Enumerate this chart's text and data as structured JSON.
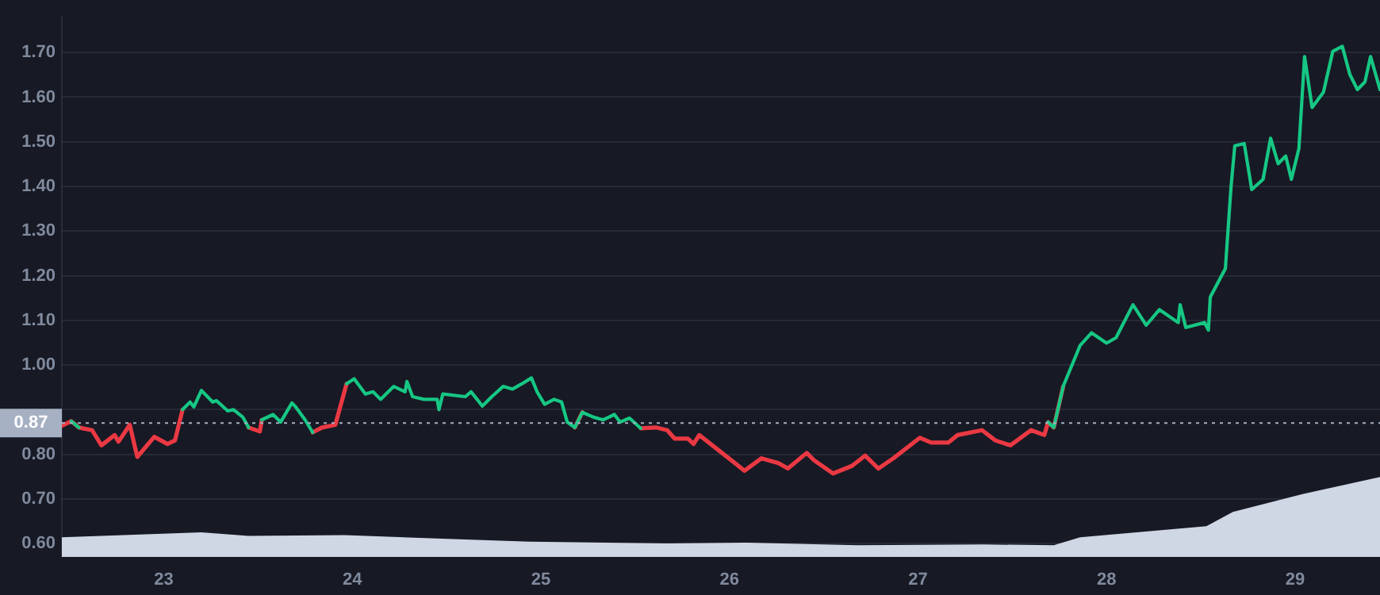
{
  "chart_data": {
    "type": "line",
    "xlim": [
      22.46,
      29.45
    ],
    "xticks": [
      23,
      24,
      25,
      26,
      27,
      28,
      29
    ],
    "ylim": [
      0.57,
      1.78
    ],
    "yticks": [
      {
        "value": 0.6,
        "label": "0.60"
      },
      {
        "value": 0.7,
        "label": "0.70"
      },
      {
        "value": 0.8,
        "label": "0.80"
      },
      {
        "value": 0.9,
        "label": null
      },
      {
        "value": 1.0,
        "label": "1.00"
      },
      {
        "value": 1.1,
        "label": "1.10"
      },
      {
        "value": 1.2,
        "label": "1.20"
      },
      {
        "value": 1.3,
        "label": "1.30"
      },
      {
        "value": 1.4,
        "label": "1.40"
      },
      {
        "value": 1.5,
        "label": "1.50"
      },
      {
        "value": 1.6,
        "label": "1.60"
      },
      {
        "value": 1.7,
        "label": "1.70"
      }
    ],
    "grid": "y",
    "legend": false,
    "marker": "none",
    "line_style": "solid",
    "ref_lines": [
      {
        "axis": "y",
        "value": 0.87,
        "label": "0.87",
        "color": "#a6b0c3",
        "line_style": "dotted"
      }
    ],
    "x": [
      22.46,
      22.51,
      22.55,
      22.62,
      22.67,
      22.74,
      22.76,
      22.82,
      22.86,
      22.95,
      23.02,
      23.06,
      23.1,
      23.14,
      23.16,
      23.2,
      23.26,
      23.28,
      23.34,
      23.37,
      23.42,
      23.45,
      23.51,
      23.52,
      23.58,
      23.62,
      23.68,
      23.7,
      23.75,
      23.79,
      23.84,
      23.91,
      23.97,
      24.01,
      24.07,
      24.11,
      24.15,
      24.22,
      24.28,
      24.29,
      24.32,
      24.38,
      24.45,
      24.46,
      24.48,
      24.6,
      24.63,
      24.69,
      24.74,
      24.8,
      24.85,
      24.9,
      24.95,
      24.98,
      25.02,
      25.07,
      25.11,
      25.14,
      25.18,
      25.22,
      25.28,
      25.33,
      25.39,
      25.42,
      25.47,
      25.53,
      25.61,
      25.67,
      25.71,
      25.78,
      25.81,
      25.84,
      26.03,
      26.08,
      26.17,
      26.26,
      26.31,
      26.41,
      26.45,
      26.55,
      26.65,
      26.72,
      26.79,
      26.87,
      27.01,
      27.07,
      27.16,
      27.21,
      27.34,
      27.41,
      27.49,
      27.6,
      27.67,
      27.69,
      27.72,
      27.77,
      27.86,
      27.92,
      28.0,
      28.05,
      28.14,
      28.21,
      28.28,
      28.38,
      28.39,
      28.42,
      28.52,
      28.54,
      28.55,
      28.63,
      28.66,
      28.68,
      28.73,
      28.77,
      28.83,
      28.87,
      28.91,
      28.95,
      28.98,
      29.02,
      29.05,
      29.09,
      29.15,
      29.2,
      29.25,
      29.29,
      29.33,
      29.37,
      29.4,
      29.45
    ],
    "series": [
      {
        "type": "area",
        "color": "#cfd6e4",
        "x": [
          22.46,
          23.2,
          23.45,
          23.96,
          24.66,
          24.94,
          25.67,
          26.09,
          26.68,
          27.35,
          27.72,
          27.86,
          28.53,
          28.67,
          29.04,
          29.45
        ],
        "values": [
          0.614,
          0.625,
          0.617,
          0.619,
          0.608,
          0.604,
          0.6,
          0.602,
          0.596,
          0.598,
          0.596,
          0.614,
          0.639,
          0.671,
          0.711,
          0.749
        ]
      },
      {
        "color": "#16c784",
        "values": [
          null,
          0.874,
          0.86,
          null,
          null,
          null,
          null,
          null,
          null,
          null,
          null,
          null,
          0.9,
          0.917,
          0.906,
          0.943,
          0.917,
          0.92,
          0.897,
          0.9,
          0.883,
          0.86,
          null,
          0.877,
          0.889,
          0.872,
          0.915,
          0.906,
          0.877,
          0.849,
          null,
          null,
          0.958,
          0.969,
          0.935,
          0.94,
          0.923,
          0.952,
          0.94,
          0.963,
          0.929,
          0.923,
          0.923,
          0.9,
          0.935,
          0.929,
          0.94,
          0.908,
          0.929,
          0.952,
          0.946,
          0.958,
          0.971,
          0.94,
          0.912,
          0.923,
          0.917,
          0.872,
          0.86,
          0.894,
          0.883,
          0.877,
          0.889,
          0.872,
          0.881,
          0.858,
          null,
          null,
          null,
          null,
          null,
          null,
          null,
          null,
          null,
          null,
          null,
          null,
          null,
          null,
          null,
          null,
          null,
          null,
          null,
          null,
          null,
          null,
          null,
          null,
          null,
          null,
          null,
          0.872,
          0.86,
          0.952,
          1.044,
          1.072,
          1.049,
          1.061,
          1.135,
          1.089,
          1.124,
          1.095,
          1.135,
          1.084,
          1.095,
          1.078,
          1.152,
          1.216,
          1.399,
          1.491,
          1.496,
          1.393,
          1.416,
          1.508,
          1.451,
          1.468,
          1.416,
          1.485,
          1.691,
          1.577,
          1.611,
          1.703,
          1.714,
          1.651,
          1.617,
          1.634,
          1.691,
          1.617
        ]
      },
      {
        "color": "#ea3943",
        "values": [
          0.864,
          0.874,
          0.86,
          0.854,
          0.82,
          0.843,
          0.828,
          0.866,
          0.794,
          0.839,
          0.823,
          0.831,
          0.9,
          null,
          null,
          null,
          null,
          null,
          null,
          null,
          null,
          0.86,
          0.851,
          0.877,
          null,
          null,
          null,
          null,
          null,
          0.849,
          0.86,
          0.866,
          0.958,
          null,
          null,
          null,
          null,
          null,
          null,
          null,
          null,
          null,
          null,
          null,
          null,
          null,
          null,
          null,
          null,
          null,
          null,
          null,
          null,
          null,
          null,
          null,
          null,
          null,
          0.86,
          0.894,
          null,
          null,
          null,
          null,
          null,
          0.858,
          0.86,
          0.854,
          0.835,
          0.835,
          0.823,
          0.843,
          0.78,
          0.763,
          0.791,
          0.78,
          0.768,
          0.803,
          0.786,
          0.757,
          0.774,
          0.797,
          0.768,
          0.791,
          0.837,
          0.826,
          0.826,
          0.843,
          0.854,
          0.831,
          0.82,
          0.854,
          0.843,
          0.872,
          0.86,
          0.952,
          null,
          null,
          null,
          null,
          null,
          null,
          null,
          null,
          null,
          null,
          null,
          null,
          null,
          null,
          null,
          null,
          null,
          null,
          null,
          null,
          null,
          null,
          null,
          null,
          null,
          null,
          null,
          null,
          null,
          null,
          null,
          null,
          null,
          null
        ]
      }
    ]
  }
}
